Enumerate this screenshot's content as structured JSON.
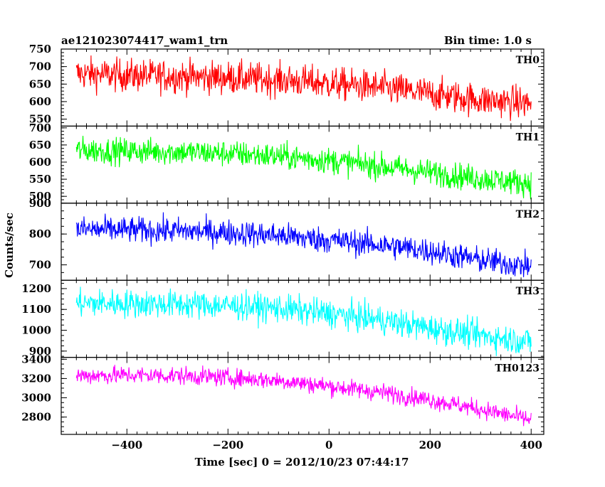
{
  "header": {
    "left": "ae121023074417_wam1_trn",
    "right": "Bin time: 1.0 s"
  },
  "chart_data": {
    "type": "line",
    "xlabel": "Time [sec] 0 = 2012/10/23 07:44:17",
    "ylabel": "Counts/sec",
    "xlim": [
      -530,
      425
    ],
    "x_major_ticks": [
      -400,
      -200,
      0,
      200,
      400
    ],
    "bin_time_s": 1.0,
    "x_range_data": [
      -500,
      400
    ],
    "grid": false,
    "legend": "none",
    "panels": [
      {
        "name": "TH0",
        "color": "#ff0000",
        "ylim": [
          530,
          750
        ],
        "y_ticks": [
          550,
          600,
          650,
          700,
          750
        ],
        "trend_x": [
          -500,
          -400,
          -300,
          -200,
          -100,
          0,
          100,
          200,
          300,
          400
        ],
        "trend_y": [
          680,
          675,
          672,
          668,
          662,
          652,
          640,
          622,
          605,
          595
        ],
        "noise": 55
      },
      {
        "name": "TH1",
        "color": "#00ff00",
        "ylim": [
          480,
          705
        ],
        "y_ticks": [
          500,
          550,
          600,
          650,
          700
        ],
        "trend_x": [
          -500,
          -400,
          -300,
          -200,
          -100,
          0,
          100,
          200,
          300,
          400
        ],
        "trend_y": [
          635,
          632,
          630,
          625,
          617,
          605,
          588,
          570,
          552,
          538
        ],
        "noise": 45
      },
      {
        "name": "TH2",
        "color": "#0000ff",
        "ylim": [
          650,
          900
        ],
        "y_ticks": [
          700,
          800,
          900
        ],
        "trend_x": [
          -500,
          -400,
          -300,
          -200,
          -100,
          0,
          100,
          200,
          300,
          400
        ],
        "trend_y": [
          815,
          813,
          810,
          805,
          795,
          780,
          765,
          745,
          715,
          695
        ],
        "noise": 50
      },
      {
        "name": "TH3",
        "color": "#00ffff",
        "ylim": [
          870,
          1240
        ],
        "y_ticks": [
          900,
          1000,
          1100,
          1200
        ],
        "trend_x": [
          -500,
          -400,
          -300,
          -200,
          -100,
          0,
          100,
          200,
          300,
          400
        ],
        "trend_y": [
          1130,
          1128,
          1125,
          1118,
          1105,
          1080,
          1050,
          1010,
          975,
          945
        ],
        "noise": 80
      },
      {
        "name": "TH0123",
        "color": "#ff00ff",
        "ylim": [
          2620,
          3420
        ],
        "y_ticks": [
          2800,
          3000,
          3200,
          3400
        ],
        "trend_x": [
          -500,
          -400,
          -300,
          -200,
          -100,
          0,
          100,
          200,
          300,
          400
        ],
        "trend_y": [
          3230,
          3235,
          3230,
          3210,
          3180,
          3120,
          3060,
          2980,
          2880,
          2770
        ],
        "noise": 110
      }
    ]
  }
}
